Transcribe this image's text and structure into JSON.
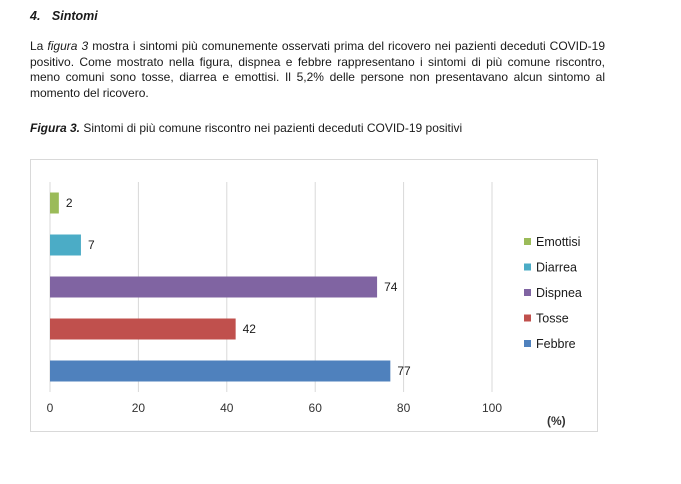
{
  "section": {
    "number": "4.",
    "title": "Sintomi"
  },
  "paragraph": {
    "lead": "La ",
    "figure_ref": "figura 3",
    "text": " mostra i sintomi più comunemente osservati prima del ricovero nei pazienti deceduti COVID-19 positivo. Come mostrato nella figura, dispnea e febbre rappresentano i sintomi di più comune riscontro,  meno comuni sono tosse, diarrea e emottisi. Il 5,2% delle persone non presentavano alcun sintomo al momento del ricovero."
  },
  "caption": {
    "label": "Figura 3.",
    "text": " Sintomi di più comune riscontro nei pazienti deceduti COVID-19 positivi"
  },
  "chart_data": {
    "type": "bar",
    "orientation": "horizontal",
    "title": "",
    "xlabel": "(%)",
    "ylabel": "",
    "xlim": [
      0,
      100
    ],
    "xticks": [
      0,
      20,
      40,
      60,
      80,
      100
    ],
    "grid": true,
    "legend_position": "right",
    "categories": [
      "Emottisi",
      "Diarrea",
      "Dispnea",
      "Tosse",
      "Febbre"
    ],
    "values": [
      2,
      7,
      74,
      42,
      77
    ],
    "colors": [
      "#9bbb59",
      "#4bacc6",
      "#8064a2",
      "#c0504d",
      "#4f81bd"
    ]
  }
}
